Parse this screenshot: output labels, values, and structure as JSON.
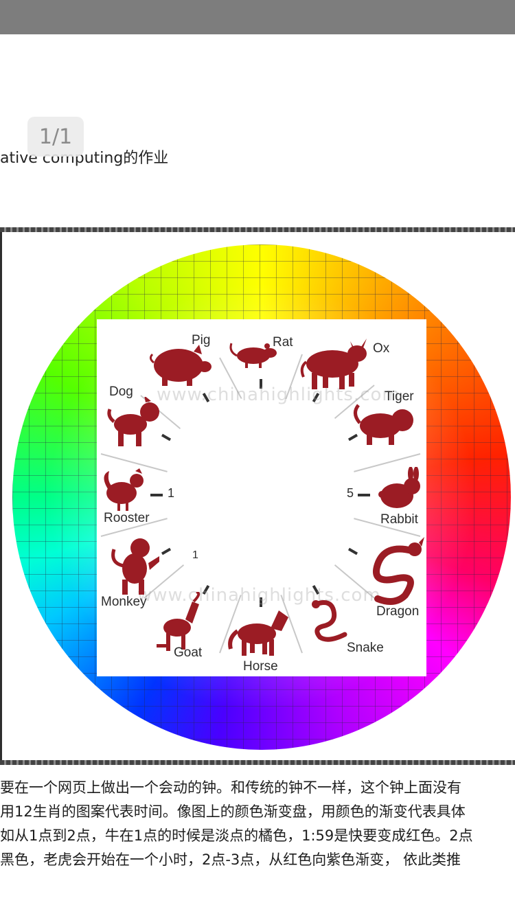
{
  "header": {
    "subtitle": "ative computing的作业"
  },
  "viewer": {
    "page_indicator": "1/1"
  },
  "figure": {
    "watermark": "www.chinahighlights.com",
    "animals": [
      {
        "key": "rat",
        "label": "Rat"
      },
      {
        "key": "ox",
        "label": "Ox"
      },
      {
        "key": "tiger",
        "label": "Tiger"
      },
      {
        "key": "rabbit",
        "label": "Rabbit"
      },
      {
        "key": "dragon",
        "label": "Dragon"
      },
      {
        "key": "snake",
        "label": "Snake"
      },
      {
        "key": "horse",
        "label": "Horse"
      },
      {
        "key": "goat",
        "label": "Goat"
      },
      {
        "key": "monkey",
        "label": "Monkey"
      },
      {
        "key": "rooster",
        "label": "Rooster"
      },
      {
        "key": "dog",
        "label": "Dog"
      },
      {
        "key": "pig",
        "label": "Pig"
      }
    ],
    "animal_color": "#9b1c24",
    "clock_digits": {
      "left": "1",
      "right": "5",
      "lower_left": "1"
    }
  },
  "description": {
    "lines": [
      "要在一个网页上做出一个会动的钟。和传统的钟不一样，这个钟上面没有",
      "用12生肖的图案代表时间。像图上的颜色渐变盘，用颜色的渐变代表具体",
      "如从1点到2点，牛在1点的时候是淡点的橘色，1:59是快要变成红色。2点",
      "黑色，老虎会开始在一个小时，2点-3点，从红色向紫色渐变，  依此类推"
    ]
  }
}
